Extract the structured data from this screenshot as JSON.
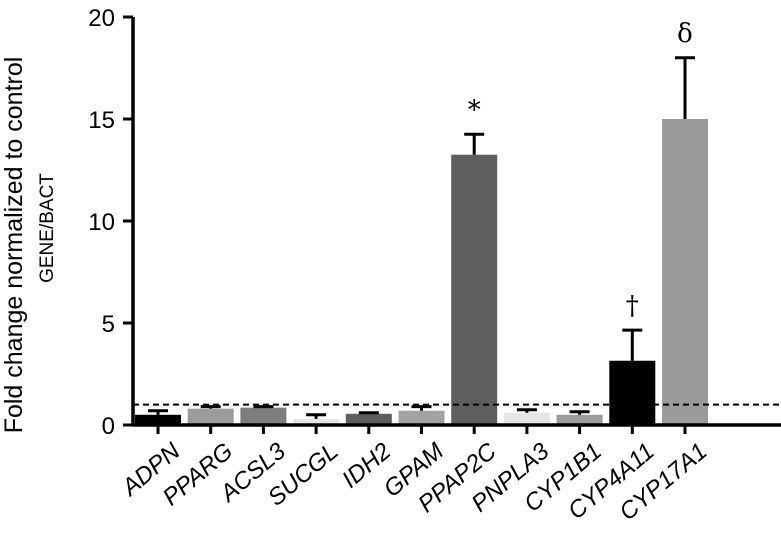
{
  "chart_data": {
    "type": "bar",
    "ylabel": "Fold change normalized to control",
    "ylabel_sub": "GENE/BACT",
    "ylim": [
      0,
      20
    ],
    "yticks": [
      "0",
      "5",
      "10",
      "15",
      "20"
    ],
    "reference_line": 1,
    "categories": [
      "ADPN",
      "PPARG",
      "ACSL3",
      "SUCGL",
      "IDH2",
      "GPAM",
      "PPAP2C",
      "PNPLA3",
      "CYP1B1",
      "CYP4A11",
      "CYP17A1"
    ],
    "values": [
      0.5,
      0.8,
      0.85,
      0.3,
      0.55,
      0.7,
      13.25,
      0.6,
      0.5,
      3.15,
      15.0
    ],
    "errors": [
      0.2,
      0.1,
      0.05,
      0.2,
      0.05,
      0.2,
      1.0,
      0.15,
      0.15,
      1.5,
      3.0
    ],
    "colors": [
      "#000000",
      "#9b9b9b",
      "#7d7d7d",
      "#e6e6e6",
      "#5e5e5e",
      "#a3a3a3",
      "#5e5e5e",
      "#e6e6e6",
      "#9b9b9b",
      "#000000",
      "#9b9b9b"
    ],
    "annotations": [
      {
        "category": "PPAP2C",
        "text": "*"
      },
      {
        "category": "CYP4A11",
        "text": "†"
      },
      {
        "category": "CYP17A1",
        "text": "δ"
      }
    ],
    "grid": false,
    "legend": "none"
  }
}
